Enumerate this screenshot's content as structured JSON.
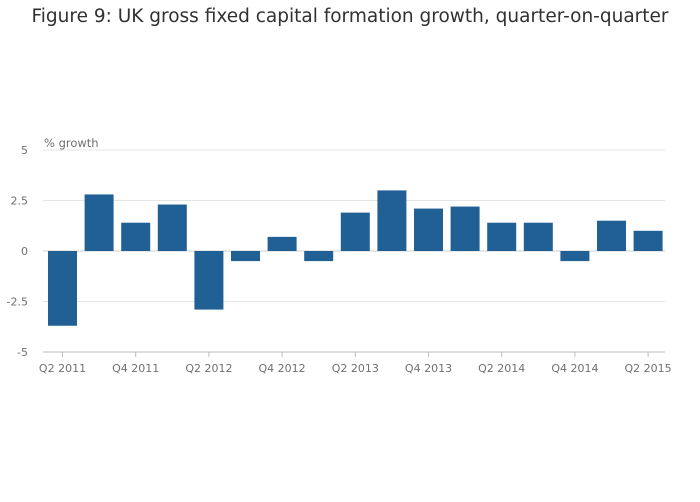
{
  "chart_data": {
    "type": "bar",
    "title": "Figure 9: UK gross fixed capital formation growth, quarter-on-quarter",
    "xlabel": "",
    "ylabel": "% growth",
    "categories": [
      "Q2 2011",
      "Q3 2011",
      "Q4 2011",
      "Q1 2012",
      "Q2 2012",
      "Q3 2012",
      "Q4 2012",
      "Q1 2013",
      "Q2 2013",
      "Q3 2013",
      "Q4 2013",
      "Q1 2014",
      "Q2 2014",
      "Q3 2014",
      "Q4 2014",
      "Q1 2015",
      "Q2 2015"
    ],
    "x_tick_labels": [
      "Q2 2011",
      "Q4 2011",
      "Q2 2012",
      "Q4 2012",
      "Q2 2013",
      "Q4 2013",
      "Q2 2014",
      "Q4 2014",
      "Q2 2015"
    ],
    "values": [
      -3.7,
      2.8,
      1.4,
      2.3,
      -2.9,
      -0.5,
      0.7,
      -0.5,
      1.9,
      3.0,
      2.1,
      2.2,
      1.4,
      1.4,
      -0.5,
      1.5,
      1.0
    ],
    "ylim": [
      -5,
      5
    ],
    "y_ticks": [
      -5,
      -2.5,
      0,
      2.5,
      5
    ],
    "y_tick_labels": [
      "-5",
      "-2.5",
      "0",
      "2.5",
      "5"
    ],
    "grid": true,
    "bar_color": "#206095",
    "grid_color": "#e4e4e4",
    "axis_color": "#bebebe"
  }
}
